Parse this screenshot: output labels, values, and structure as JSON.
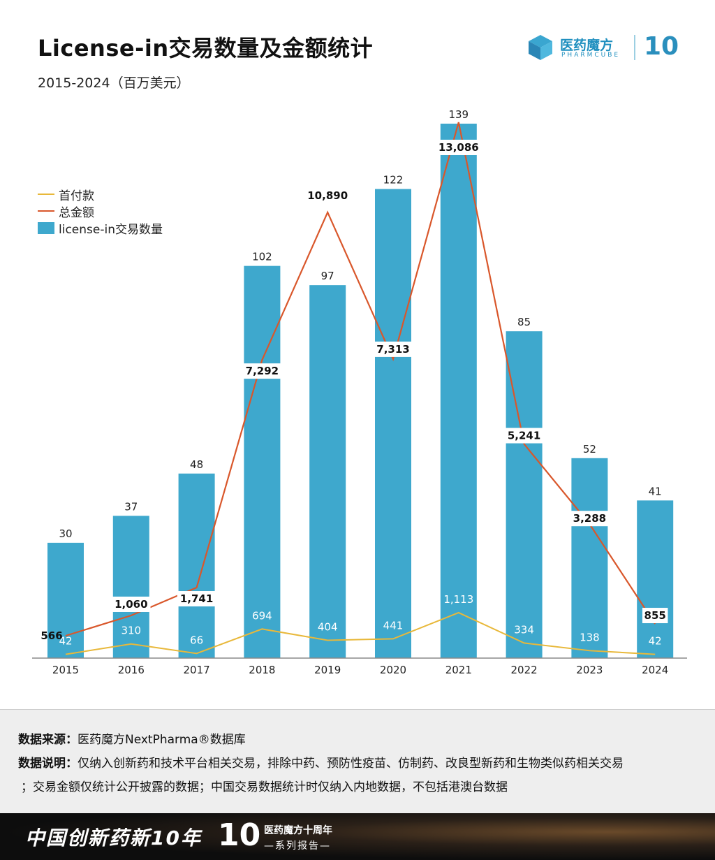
{
  "header": {
    "title": "License-in交易数量及金额统计",
    "subtitle": "2015-2024（百万美元）"
  },
  "logo": {
    "cn": "医药魔方",
    "en": "PHARMCUBE",
    "ten": "10"
  },
  "colors": {
    "bar": "#3ea8cd",
    "total_line": "#d9572b",
    "upfront_line": "#e8b83a"
  },
  "chart_data": {
    "type": "bar",
    "categories": [
      "2015",
      "2016",
      "2017",
      "2018",
      "2019",
      "2020",
      "2021",
      "2022",
      "2023",
      "2024"
    ],
    "series": [
      {
        "name": "license-in交易数量",
        "type": "bar",
        "values": [
          30,
          37,
          48,
          102,
          97,
          122,
          139,
          85,
          52,
          41
        ],
        "labels": [
          "30",
          "37",
          "48",
          "102",
          "97",
          "122",
          "139",
          "85",
          "52",
          "41"
        ]
      },
      {
        "name": "总金额",
        "type": "line",
        "values": [
          566,
          1060,
          1741,
          7292,
          10890,
          7313,
          13086,
          5241,
          3288,
          855
        ],
        "labels": [
          "566",
          "1,060",
          "1,741",
          "7,292",
          "10,890",
          "7,313",
          "13,086",
          "5,241",
          "3,288",
          "855"
        ]
      },
      {
        "name": "首付款",
        "type": "line",
        "values": [
          42,
          310,
          66,
          694,
          404,
          441,
          1113,
          334,
          138,
          42
        ],
        "labels": [
          "42",
          "310",
          "66",
          "694",
          "404",
          "441",
          "1,113",
          "334",
          "138",
          "42"
        ]
      }
    ],
    "legend_position": "left",
    "grid": false
  },
  "notes": {
    "source_label": "数据来源：",
    "source_text": "医药魔方NextPharma®数据库",
    "desc_label": "数据说明：",
    "desc_text_1": "仅纳入创新药和技术平台相关交易，排除中药、预防性疫苗、仿制药、改良型新药和生物类似药相关交易",
    "desc_text_2": "；交易金额仅统计公开披露的数据；中国交易数据统计时仅纳入内地数据，不包括港澳台数据"
  },
  "footer": {
    "slogan": "中国创新药新10年",
    "ten": "10",
    "series_line1": "医药魔方十周年",
    "series_line2": "—系列报告—"
  }
}
